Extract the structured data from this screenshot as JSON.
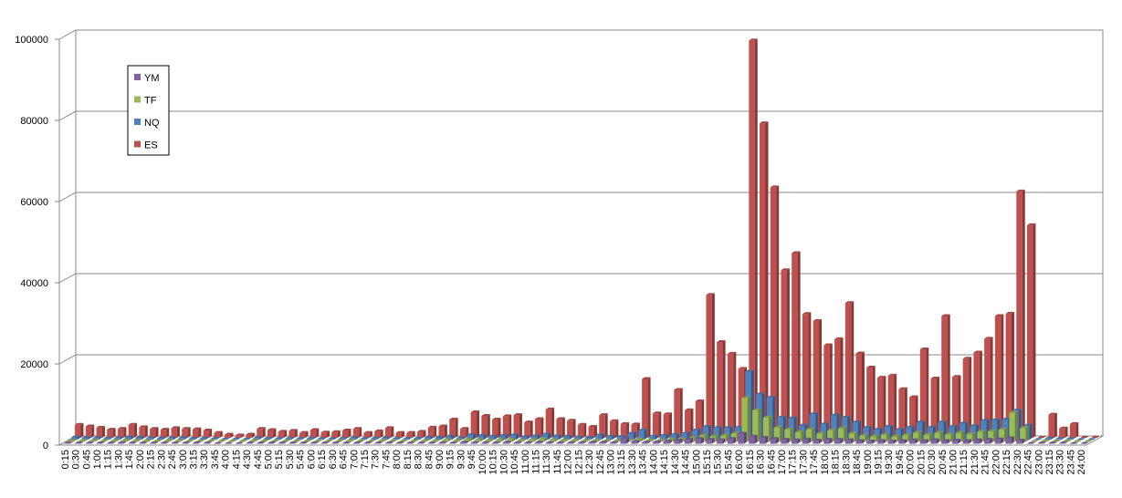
{
  "chart_data": {
    "type": "bar3d",
    "categories": [
      "0:15",
      "0:30",
      "0:45",
      "1:00",
      "1:15",
      "1:30",
      "1:45",
      "2:00",
      "2:15",
      "2:30",
      "2:45",
      "3:00",
      "3:15",
      "3:30",
      "3:45",
      "4:00",
      "4:15",
      "4:30",
      "4:45",
      "5:00",
      "5:15",
      "5:30",
      "5:45",
      "6:00",
      "6:15",
      "6:30",
      "6:45",
      "7:00",
      "7:15",
      "7:30",
      "7:45",
      "8:00",
      "8:15",
      "8:30",
      "8:45",
      "9:00",
      "9:15",
      "9:30",
      "9:45",
      "10:00",
      "10:15",
      "10:30",
      "10:45",
      "11:00",
      "11:15",
      "11:30",
      "11:45",
      "12:00",
      "12:15",
      "12:30",
      "12:45",
      "13:00",
      "13:15",
      "13:30",
      "13:45",
      "14:00",
      "14:15",
      "14:30",
      "14:45",
      "15:00",
      "15:15",
      "15:30",
      "15:45",
      "16:00",
      "16:15",
      "16:30",
      "16:45",
      "17:00",
      "17:15",
      "17:30",
      "17:45",
      "18:00",
      "18:15",
      "18:30",
      "18:45",
      "19:00",
      "19:15",
      "19:30",
      "19:45",
      "20:00",
      "20:15",
      "20:30",
      "20:45",
      "21:00",
      "21:15",
      "21:30",
      "21:45",
      "22:00",
      "22:15",
      "22:30",
      "22:45",
      "23:00",
      "23:15",
      "23:30",
      "23:45",
      "24:00"
    ],
    "series": [
      {
        "name": "ES",
        "color": "#c0504d",
        "values": [
          3200,
          2800,
          2500,
          2000,
          2200,
          3200,
          2600,
          2200,
          2000,
          2400,
          2200,
          2100,
          1800,
          1200,
          800,
          600,
          800,
          2200,
          1900,
          1500,
          1700,
          1200,
          1900,
          1300,
          1400,
          1800,
          2200,
          1200,
          1600,
          2400,
          1200,
          1200,
          1500,
          2500,
          2800,
          4500,
          2200,
          6300,
          5400,
          4500,
          5300,
          5600,
          3800,
          4600,
          7000,
          4600,
          4200,
          3200,
          2700,
          5600,
          4100,
          3400,
          3300,
          14500,
          6000,
          5800,
          11800,
          6800,
          9000,
          35200,
          23600,
          20700,
          17000,
          97900,
          77500,
          61700,
          41300,
          45500,
          30500,
          28800,
          22800,
          24300,
          33200,
          20800,
          17300,
          14800,
          15300,
          12000,
          10000,
          21800,
          14600,
          30000,
          15000,
          19500,
          21000,
          24400,
          30000,
          30600,
          60700,
          52400,
          0,
          5700,
          2300,
          3400,
          0,
          0
        ]
      },
      {
        "name": "NQ",
        "color": "#4f81bd",
        "values": [
          600,
          500,
          400,
          300,
          400,
          600,
          500,
          400,
          300,
          400,
          400,
          300,
          300,
          200,
          100,
          100,
          100,
          400,
          300,
          200,
          300,
          200,
          300,
          200,
          200,
          300,
          400,
          200,
          300,
          400,
          200,
          200,
          300,
          500,
          500,
          800,
          400,
          1200,
          1000,
          800,
          1000,
          1100,
          700,
          900,
          1300,
          900,
          800,
          600,
          500,
          1100,
          800,
          700,
          1500,
          2300,
          800,
          1000,
          1200,
          1500,
          2300,
          3200,
          2900,
          2900,
          3000,
          16800,
          11200,
          10400,
          5500,
          5300,
          3500,
          6300,
          3800,
          6000,
          5500,
          4300,
          3000,
          2500,
          3200,
          2500,
          3000,
          4300,
          3000,
          4300,
          3200,
          4000,
          3400,
          4700,
          4800,
          5000,
          7200,
          3500,
          0,
          300,
          200,
          200,
          0,
          0
        ]
      },
      {
        "name": "TF",
        "color": "#9bbb59",
        "values": [
          200,
          200,
          200,
          100,
          200,
          300,
          200,
          200,
          100,
          200,
          200,
          100,
          100,
          100,
          100,
          100,
          100,
          200,
          100,
          100,
          100,
          100,
          100,
          100,
          100,
          100,
          200,
          100,
          100,
          200,
          100,
          100,
          100,
          200,
          200,
          400,
          200,
          500,
          400,
          300,
          400,
          500,
          300,
          400,
          600,
          400,
          300,
          300,
          200,
          300,
          200,
          200,
          300,
          600,
          300,
          300,
          500,
          600,
          900,
          1500,
          1300,
          1500,
          2000,
          10800,
          7800,
          6000,
          3500,
          3000,
          2400,
          3000,
          2000,
          2800,
          3300,
          2000,
          1500,
          1300,
          1700,
          1300,
          1600,
          2200,
          1700,
          2200,
          1800,
          2200,
          1900,
          2500,
          2600,
          3000,
          7200,
          3400,
          0,
          200,
          100,
          100,
          0,
          0
        ]
      },
      {
        "name": "YM",
        "color": "#8064a2",
        "values": [
          100,
          100,
          100,
          100,
          100,
          200,
          100,
          100,
          100,
          100,
          100,
          100,
          100,
          100,
          0,
          0,
          0,
          100,
          100,
          100,
          100,
          100,
          100,
          100,
          100,
          100,
          100,
          100,
          100,
          100,
          100,
          100,
          100,
          100,
          100,
          200,
          100,
          300,
          200,
          200,
          200,
          300,
          200,
          200,
          300,
          200,
          200,
          200,
          200,
          300,
          300,
          200,
          1200,
          500,
          300,
          400,
          600,
          800,
          1000,
          1200,
          1000,
          900,
          1200,
          2500,
          1800,
          1500,
          1200,
          1000,
          900,
          1100,
          800,
          1000,
          1000,
          900,
          700,
          600,
          700,
          600,
          700,
          900,
          700,
          900,
          700,
          800,
          700,
          900,
          1000,
          1100,
          1400,
          800,
          0,
          100,
          100,
          100,
          0,
          0
        ]
      }
    ],
    "ylim": [
      0,
      100000
    ],
    "yticks": [
      0,
      20000,
      40000,
      60000,
      80000,
      100000
    ],
    "grid": true,
    "legend": "left"
  }
}
